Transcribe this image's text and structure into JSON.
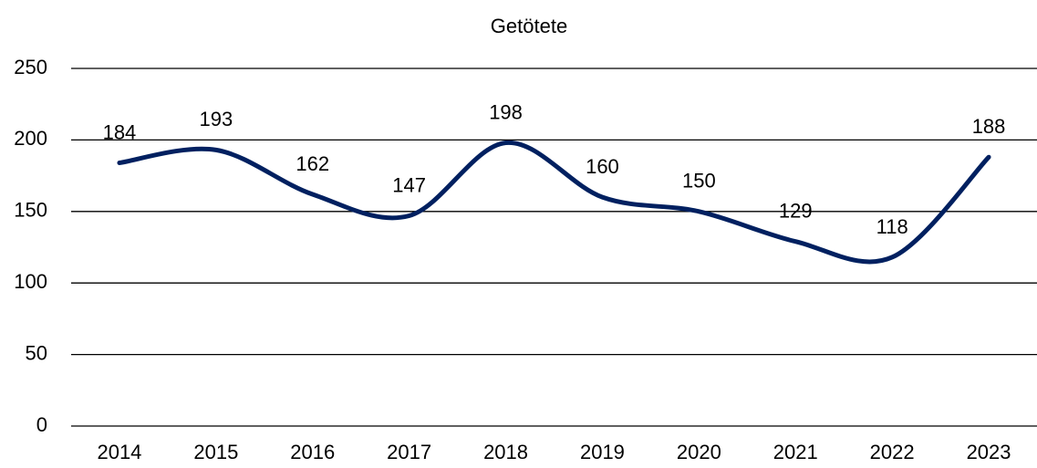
{
  "chart_data": {
    "type": "line",
    "title": "Getötete",
    "categories": [
      "2014",
      "2015",
      "2016",
      "2017",
      "2018",
      "2019",
      "2020",
      "2021",
      "2022",
      "2023"
    ],
    "series": [
      {
        "name": "Getötete",
        "color": "#002060",
        "values": [
          184,
          193,
          162,
          147,
          198,
          160,
          150,
          129,
          118,
          188
        ]
      }
    ],
    "ylim": [
      0,
      250
    ],
    "yticks": [
      0,
      50,
      100,
      150,
      200,
      250
    ],
    "grid": true,
    "smooth": true
  }
}
